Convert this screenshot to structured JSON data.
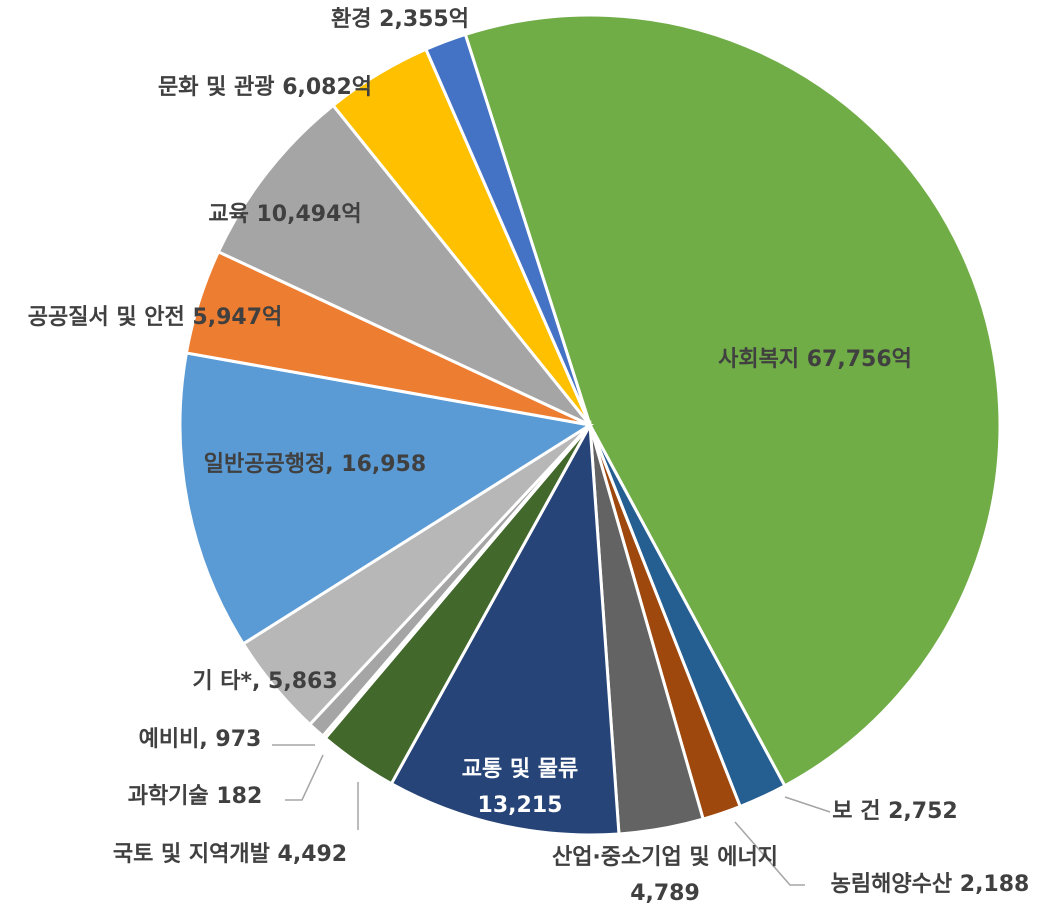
{
  "chart_data": {
    "type": "pie",
    "categories": [
      "사회복지",
      "보 건",
      "농림해양수산",
      "산업·중소기업 및 에너지",
      "교통 및 물류",
      "국토 및 지역개발",
      "과학기술",
      "예비비,",
      "기 타*,",
      "일반공공행정,",
      "공공질서 및 안전",
      "교육",
      "문화 및 관광",
      "환경"
    ],
    "values": [
      67756,
      2752,
      2188,
      4789,
      13215,
      4492,
      182,
      973,
      5863,
      16958,
      5947,
      10494,
      6082,
      2355
    ],
    "value_labels": [
      "67,756억",
      "2,752",
      "2,188",
      "4,789",
      "13,215",
      "4,492",
      "182",
      "973",
      "5,863",
      "16,958",
      "5,947억",
      "10,494억",
      "6,082억",
      "2,355억"
    ],
    "colors": [
      "#70ad47",
      "#255e91",
      "#9e480e",
      "#636363",
      "#264478",
      "#43682b",
      "#f1975a",
      "#a5a5a5",
      "#b7b7b7",
      "#5b9bd5",
      "#ed7d31",
      "#a5a5a5",
      "#ffc000",
      "#4472c4"
    ]
  }
}
